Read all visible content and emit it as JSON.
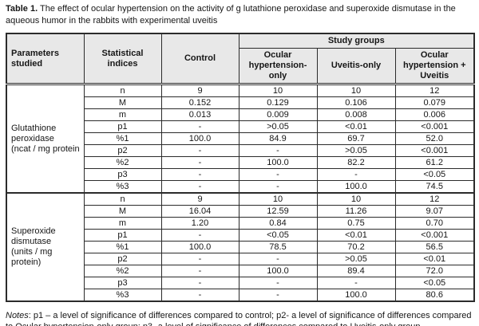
{
  "title": {
    "label": "Table 1.",
    "text": " The effect of ocular hypertension on the activity of g lutathione peroxidase and superoxide dismutase in the aqueous humor in the rabbits with experimental uveitis"
  },
  "table": {
    "header": {
      "col_parameters": "Parameters\nstudied",
      "col_statistical": "Statistical\nindices",
      "col_control": "Control",
      "study_groups": "Study groups",
      "group_columns": [
        "Ocular\nhypertension-only",
        "Uveitis-only",
        "Ocular\nhypertension +\nUveitis"
      ]
    },
    "blocks": [
      {
        "parameter": "Glutathione\nperoxidase\n(ncat / mg protein",
        "rows": [
          [
            "n",
            "9",
            "10",
            "10",
            "12"
          ],
          [
            "M",
            "0.152",
            "0.129",
            "0.106",
            "0.079"
          ],
          [
            "m",
            "0.013",
            "0.009",
            "0.008",
            "0.006"
          ],
          [
            "p1",
            "-",
            ">0.05",
            "<0.01",
            "<0.001"
          ],
          [
            "%1",
            "100.0",
            "84.9",
            "69.7",
            "52.0"
          ],
          [
            "p2",
            "-",
            "-",
            ">0.05",
            "<0.001"
          ],
          [
            "%2",
            "-",
            "100.0",
            "82.2",
            "61.2"
          ],
          [
            "p3",
            "-",
            "-",
            "-",
            "<0.05"
          ],
          [
            "%3",
            "-",
            "-",
            "100.0",
            "74.5"
          ]
        ]
      },
      {
        "parameter": "Superoxide\ndismutase\n(units / mg protein)",
        "rows": [
          [
            "n",
            "9",
            "10",
            "10",
            "12"
          ],
          [
            "M",
            "16.04",
            "12.59",
            "11.26",
            "9.07"
          ],
          [
            "m",
            "1.20",
            "0.84",
            "0.75",
            "0.70"
          ],
          [
            "p1",
            "-",
            "<0.05",
            "<0.01",
            "<0.001"
          ],
          [
            "%1",
            "100.0",
            "78.5",
            "70.2",
            "56.5"
          ],
          [
            "p2",
            "-",
            "-",
            ">0.05",
            "<0.01"
          ],
          [
            "%2",
            "-",
            "100.0",
            "89.4",
            "72.0"
          ],
          [
            "p3",
            "-",
            "-",
            "-",
            "<0.05"
          ],
          [
            "%3",
            "-",
            "-",
            "100.0",
            "80.6"
          ]
        ]
      }
    ]
  },
  "notes": {
    "label": "Notes",
    "text": ": p1 – a level of significance of differences compared to control; p2- a level of significance of differences compared to Ocular hypertension-only group; p3- a level of significance of differences compared to Uveitis-only group"
  },
  "colors": {
    "header_background": "#e8e8e8",
    "border": "#2b2b2b",
    "text": "#161616"
  }
}
